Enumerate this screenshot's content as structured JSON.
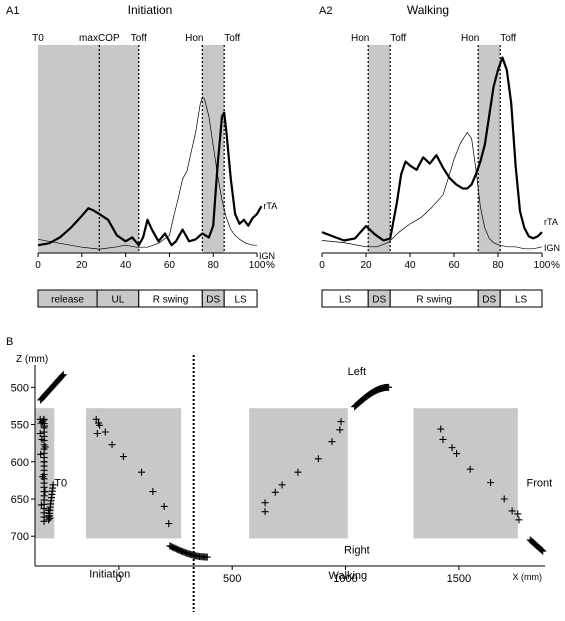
{
  "panels": {
    "a1": {
      "label": "A1",
      "title": "Initiation"
    },
    "a2": {
      "label": "A2",
      "title": "Walking"
    },
    "b": {
      "label": "B"
    }
  },
  "chart_data": [
    {
      "id": "A1",
      "type": "line",
      "title": "Initiation",
      "xlabel": "%",
      "x_ticks": [
        0,
        20,
        40,
        60,
        80,
        100
      ],
      "xlim": [
        0,
        105
      ],
      "ylim": [
        0,
        100
      ],
      "shaded_intervals": [
        [
          0,
          46
        ],
        [
          75,
          85
        ]
      ],
      "events": [
        {
          "label": "T0",
          "x": 0,
          "dashed": false
        },
        {
          "label": "maxCOP",
          "x": 28,
          "dashed": true
        },
        {
          "label": "Toff",
          "x": 46,
          "dashed": true
        },
        {
          "label": "Hon",
          "x": 75,
          "dashed": true
        },
        {
          "label": "Toff",
          "x": 85,
          "dashed": true
        }
      ],
      "series": [
        {
          "name": "rTA",
          "bold": true,
          "x": [
            0,
            5,
            10,
            15,
            20,
            23,
            25,
            28,
            32,
            36,
            40,
            43,
            46,
            48,
            50,
            52,
            55,
            58,
            61,
            63,
            66,
            69,
            72,
            75,
            78,
            80,
            82,
            84,
            85,
            86,
            88,
            90,
            92,
            94,
            96,
            98,
            100,
            102
          ],
          "y": [
            4,
            5,
            8,
            13,
            19,
            23,
            22,
            20,
            17,
            9,
            6,
            8,
            4,
            8,
            17,
            12,
            6,
            10,
            4,
            6,
            12,
            6,
            7,
            10,
            8,
            14,
            45,
            70,
            72,
            62,
            38,
            20,
            15,
            17,
            14,
            18,
            20,
            24
          ]
        },
        {
          "name": "IGN",
          "bold": false,
          "x": [
            0,
            10,
            20,
            28,
            35,
            40,
            45,
            50,
            55,
            60,
            62,
            64,
            66,
            68,
            70,
            72,
            74,
            75,
            76,
            78,
            80,
            82,
            84,
            86,
            88,
            90,
            92,
            95,
            98,
            100
          ],
          "y": [
            7,
            5,
            3,
            2,
            3,
            4,
            3,
            3,
            5,
            9,
            19,
            28,
            38,
            42,
            52,
            62,
            76,
            80,
            79,
            70,
            55,
            40,
            27,
            18,
            12,
            9,
            7,
            5,
            4,
            4
          ]
        }
      ],
      "phases": [
        {
          "label": "release",
          "from": 0,
          "to": 27,
          "shaded": true
        },
        {
          "label": "UL",
          "from": 27,
          "to": 46,
          "shaded": true
        },
        {
          "label": "R swing",
          "from": 46,
          "to": 75,
          "shaded": false
        },
        {
          "label": "DS",
          "from": 75,
          "to": 85,
          "shaded": true
        },
        {
          "label": "LS",
          "from": 85,
          "to": 100,
          "shaded": false
        }
      ]
    },
    {
      "id": "A2",
      "type": "line",
      "title": "Walking",
      "xlabel": "%",
      "x_ticks": [
        0,
        20,
        40,
        60,
        80,
        100
      ],
      "xlim": [
        0,
        105
      ],
      "ylim": [
        0,
        100
      ],
      "shaded_intervals": [
        [
          21,
          31
        ],
        [
          71,
          81
        ]
      ],
      "events": [
        {
          "label": "Hon",
          "x": 21,
          "dashed": true
        },
        {
          "label": "Toff",
          "x": 31,
          "dashed": true
        },
        {
          "label": "Hon",
          "x": 71,
          "dashed": true
        },
        {
          "label": "Toff",
          "x": 81,
          "dashed": true
        }
      ],
      "series": [
        {
          "name": "rTA",
          "bold": true,
          "x": [
            0,
            5,
            10,
            15,
            20,
            24,
            28,
            31,
            34,
            36,
            38,
            40,
            43,
            46,
            49,
            52,
            55,
            58,
            61,
            64,
            66,
            68,
            70,
            72,
            74,
            76,
            78,
            80,
            82,
            84,
            86,
            88,
            90,
            92,
            94,
            96,
            98,
            100
          ],
          "y": [
            10,
            8,
            6,
            7,
            13,
            9,
            6,
            7,
            24,
            38,
            44,
            42,
            40,
            46,
            43,
            47,
            41,
            36,
            33,
            31,
            31,
            33,
            38,
            44,
            52,
            66,
            80,
            88,
            94,
            88,
            72,
            42,
            20,
            12,
            8,
            7,
            8,
            10
          ]
        },
        {
          "name": "IGN",
          "bold": false,
          "x": [
            0,
            10,
            20,
            25,
            30,
            35,
            40,
            45,
            50,
            55,
            58,
            60,
            63,
            66,
            68,
            70,
            72,
            74,
            76,
            78,
            80,
            84,
            88,
            92,
            96,
            100
          ],
          "y": [
            6,
            5,
            3,
            3,
            5,
            10,
            14,
            17,
            22,
            28,
            38,
            45,
            53,
            58,
            55,
            40,
            22,
            12,
            7,
            5,
            4,
            3,
            3,
            2,
            2,
            3
          ]
        }
      ],
      "phases": [
        {
          "label": "LS",
          "from": 0,
          "to": 21,
          "shaded": false
        },
        {
          "label": "DS",
          "from": 21,
          "to": 31,
          "shaded": true
        },
        {
          "label": "R swing",
          "from": 31,
          "to": 71,
          "shaded": false
        },
        {
          "label": "DS",
          "from": 71,
          "to": 81,
          "shaded": true
        },
        {
          "label": "LS",
          "from": 81,
          "to": 100,
          "shaded": false
        }
      ]
    },
    {
      "id": "B",
      "type": "scatter",
      "xlabel": "X (mm)",
      "ylabel": "Z (mm)",
      "x_ticks": [
        0,
        500,
        1000,
        1500
      ],
      "y_ticks": [
        500,
        550,
        600,
        650,
        700
      ],
      "xlim": [
        -370,
        1880
      ],
      "ylim": [
        470,
        740
      ],
      "y_inverted": true,
      "marker": "+",
      "divider_x": 330,
      "annotations": [
        {
          "text": "Left",
          "x": 1050,
          "y": 478
        },
        {
          "text": "Right",
          "x": 1050,
          "y": 718
        },
        {
          "text": "Front",
          "x": 1855,
          "y": 628
        },
        {
          "text": "T0",
          "x": -285,
          "y": 628
        },
        {
          "text": "Initiation",
          "x": -40,
          "y": 750
        },
        {
          "text": "Walking",
          "x": 1010,
          "y": 752
        }
      ],
      "shaded_boxes": [
        {
          "x": [
            -370,
            -285
          ],
          "y": [
            528,
            703
          ]
        },
        {
          "x": [
            -145,
            275
          ],
          "y": [
            528,
            703
          ]
        },
        {
          "x": [
            575,
            1010
          ],
          "y": [
            528,
            703
          ]
        },
        {
          "x": [
            1300,
            1760
          ],
          "y": [
            528,
            703
          ]
        }
      ],
      "sequences": [
        {
          "x": [
            -345,
            -245
          ],
          "y": [
            517,
            483
          ],
          "n": 25
        },
        {
          "x": [
            -330,
            -330
          ],
          "y": [
            543,
            680
          ],
          "n": 25
        },
        {
          "x": [
            -310,
            -290
          ],
          "y": [
            678,
            631
          ],
          "n": 12
        },
        {
          "x": [
            225,
            390
          ],
          "y": [
            713,
            728
          ],
          "n": 30
        },
        {
          "x": [
            1040,
            1190
          ],
          "y": [
            526,
            500
          ],
          "n": 35
        },
        {
          "x": [
            1815,
            1870
          ],
          "y": [
            705,
            720
          ],
          "n": 14
        }
      ],
      "points": {
        "x": [
          -347,
          -343,
          -337,
          -332,
          -328,
          -347,
          -340,
          -325,
          -345,
          -330,
          -336,
          -326,
          -342,
          -310,
          -308,
          -305,
          -100,
          -90,
          -85,
          -95,
          -60,
          -30,
          20,
          100,
          150,
          200,
          220,
          645,
          645,
          690,
          720,
          790,
          880,
          940,
          975,
          980,
          1420,
          1430,
          1470,
          1490,
          1550,
          1640,
          1700,
          1735,
          1760,
          1765
        ],
        "y": [
          543,
          548,
          546,
          544,
          552,
          562,
          570,
          580,
          590,
          600,
          620,
          640,
          658,
          665,
          672,
          676,
          543,
          548,
          551,
          562,
          560,
          577,
          593,
          614,
          640,
          660,
          683,
          655,
          667,
          641,
          631,
          614,
          596,
          573,
          557,
          546,
          556,
          570,
          581,
          589,
          610,
          628,
          650,
          666,
          670,
          678
        ]
      }
    }
  ]
}
